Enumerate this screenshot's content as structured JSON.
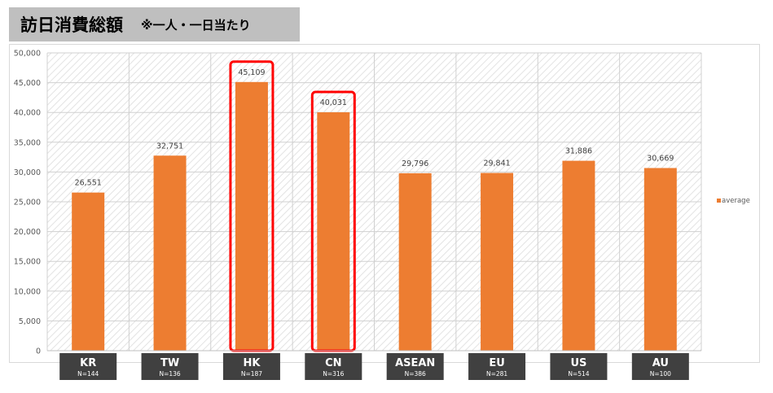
{
  "header": {
    "title": "訪日消費総額",
    "subtitle": "※一人・一日当たり"
  },
  "colors": {
    "bar": "#ed7d31",
    "highlight": "#ff0000",
    "category_box": "#404040",
    "header_bg": "#bfbfbf"
  },
  "highlighted_categories": [
    "HK",
    "CN"
  ],
  "chart_data": {
    "type": "bar",
    "title": "",
    "xlabel": "",
    "ylabel": "",
    "ylim": [
      0,
      50000
    ],
    "yticks": [
      0,
      5000,
      10000,
      15000,
      20000,
      25000,
      30000,
      35000,
      40000,
      45000,
      50000
    ],
    "ytick_labels": [
      "0",
      "5,000",
      "10,000",
      "15,000",
      "20,000",
      "25,000",
      "30,000",
      "35,000",
      "40,000",
      "45,000",
      "50,000"
    ],
    "grid": true,
    "legend_position": "right",
    "categories": [
      "KR",
      "TW",
      "HK",
      "CN",
      "ASEAN",
      "EU",
      "US",
      "AU"
    ],
    "sample_sizes": [
      "N=144",
      "N=136",
      "N=187",
      "N=316",
      "N=386",
      "N=281",
      "N=514",
      "N=100"
    ],
    "series": [
      {
        "name": "average",
        "values": [
          26551,
          32751,
          45109,
          40031,
          29796,
          29841,
          31886,
          30669
        ],
        "labels": [
          "26,551",
          "32,751",
          "45,109",
          "40,031",
          "29,796",
          "29,841",
          "31,886",
          "30,669"
        ]
      }
    ]
  }
}
